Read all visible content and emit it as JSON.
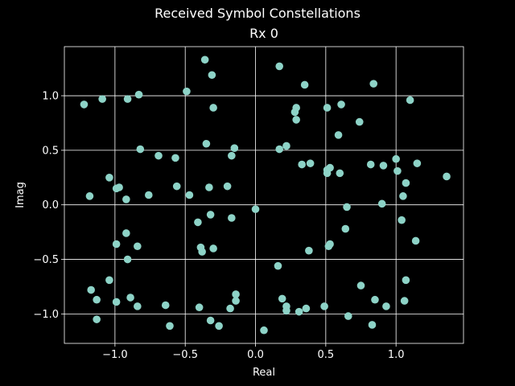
{
  "figure": {
    "suptitle": "Received Symbol Constellations"
  },
  "chart_data": {
    "type": "scatter",
    "title": "Rx 0",
    "xlabel": "Real",
    "ylabel": "Imag",
    "xlim": [
      -1.36,
      1.48
    ],
    "ylim": [
      -1.27,
      1.45
    ],
    "xticks": [
      -1.0,
      -0.5,
      0.0,
      0.5,
      1.0
    ],
    "xtick_labels": [
      "−1.0",
      "−0.5",
      "0.0",
      "0.5",
      "1.0"
    ],
    "yticks": [
      -1.0,
      -0.5,
      0.0,
      0.5,
      1.0
    ],
    "ytick_labels": [
      "−1.0",
      "−0.5",
      "0.0",
      "0.5",
      "1.0"
    ],
    "grid": true,
    "colors": {
      "background": "#000000",
      "marker": "#8dd3c7",
      "grid": "#ffffff",
      "text": "#ffffff"
    },
    "points": [
      {
        "x": -1.22,
        "y": 0.92
      },
      {
        "x": -1.09,
        "y": 0.97
      },
      {
        "x": -0.91,
        "y": 0.97
      },
      {
        "x": -0.83,
        "y": 1.01
      },
      {
        "x": -0.36,
        "y": 1.33
      },
      {
        "x": -0.31,
        "y": 1.19
      },
      {
        "x": -0.49,
        "y": 1.04
      },
      {
        "x": -0.3,
        "y": 0.89
      },
      {
        "x": 0.17,
        "y": 1.27
      },
      {
        "x": 0.35,
        "y": 1.1
      },
      {
        "x": 0.29,
        "y": 0.89
      },
      {
        "x": 0.28,
        "y": 0.85
      },
      {
        "x": 0.29,
        "y": 0.78
      },
      {
        "x": 0.51,
        "y": 0.89
      },
      {
        "x": 0.61,
        "y": 0.92
      },
      {
        "x": 0.84,
        "y": 1.11
      },
      {
        "x": 1.1,
        "y": 0.96
      },
      {
        "x": 0.74,
        "y": 0.76
      },
      {
        "x": 0.59,
        "y": 0.64
      },
      {
        "x": -0.82,
        "y": 0.51
      },
      {
        "x": -0.69,
        "y": 0.45
      },
      {
        "x": -0.57,
        "y": 0.43
      },
      {
        "x": -0.35,
        "y": 0.56
      },
      {
        "x": -0.15,
        "y": 0.52
      },
      {
        "x": -0.17,
        "y": 0.45
      },
      {
        "x": 0.17,
        "y": 0.51
      },
      {
        "x": 0.22,
        "y": 0.54
      },
      {
        "x": -1.04,
        "y": 0.25
      },
      {
        "x": -0.99,
        "y": 0.15
      },
      {
        "x": -0.97,
        "y": 0.16
      },
      {
        "x": -1.18,
        "y": 0.08
      },
      {
        "x": -0.76,
        "y": 0.09
      },
      {
        "x": -0.92,
        "y": 0.05
      },
      {
        "x": -0.56,
        "y": 0.17
      },
      {
        "x": -0.47,
        "y": 0.09
      },
      {
        "x": -0.33,
        "y": 0.16
      },
      {
        "x": -0.2,
        "y": 0.17
      },
      {
        "x": 0.33,
        "y": 0.37
      },
      {
        "x": 0.39,
        "y": 0.38
      },
      {
        "x": 0.51,
        "y": 0.29
      },
      {
        "x": 0.51,
        "y": 0.32
      },
      {
        "x": 0.53,
        "y": 0.34
      },
      {
        "x": 0.6,
        "y": 0.29
      },
      {
        "x": 0.82,
        "y": 0.37
      },
      {
        "x": 0.91,
        "y": 0.36
      },
      {
        "x": 1.0,
        "y": 0.42
      },
      {
        "x": 1.01,
        "y": 0.31
      },
      {
        "x": 1.15,
        "y": 0.38
      },
      {
        "x": 1.36,
        "y": 0.26
      },
      {
        "x": 1.07,
        "y": 0.2
      },
      {
        "x": 1.05,
        "y": 0.08
      },
      {
        "x": 0.9,
        "y": 0.01
      },
      {
        "x": 0.65,
        "y": -0.02
      },
      {
        "x": 0.0,
        "y": -0.04
      },
      {
        "x": -0.32,
        "y": -0.09
      },
      {
        "x": -0.41,
        "y": -0.16
      },
      {
        "x": -0.17,
        "y": -0.12
      },
      {
        "x": 1.04,
        "y": -0.14
      },
      {
        "x": 0.64,
        "y": -0.22
      },
      {
        "x": -0.92,
        "y": -0.26
      },
      {
        "x": -0.99,
        "y": -0.36
      },
      {
        "x": -0.84,
        "y": -0.38
      },
      {
        "x": -0.39,
        "y": -0.39
      },
      {
        "x": -0.38,
        "y": -0.43
      },
      {
        "x": -0.3,
        "y": -0.4
      },
      {
        "x": 0.38,
        "y": -0.42
      },
      {
        "x": 0.53,
        "y": -0.36
      },
      {
        "x": 0.52,
        "y": -0.38
      },
      {
        "x": 1.14,
        "y": -0.33
      },
      {
        "x": -0.91,
        "y": -0.5
      },
      {
        "x": 0.16,
        "y": -0.56
      },
      {
        "x": -1.04,
        "y": -0.69
      },
      {
        "x": 1.07,
        "y": -0.69
      },
      {
        "x": -1.17,
        "y": -0.78
      },
      {
        "x": 0.75,
        "y": -0.74
      },
      {
        "x": -1.13,
        "y": -0.87
      },
      {
        "x": -0.99,
        "y": -0.89
      },
      {
        "x": -0.89,
        "y": -0.85
      },
      {
        "x": -0.84,
        "y": -0.93
      },
      {
        "x": -0.64,
        "y": -0.92
      },
      {
        "x": -0.4,
        "y": -0.94
      },
      {
        "x": -0.14,
        "y": -0.82
      },
      {
        "x": -0.14,
        "y": -0.88
      },
      {
        "x": -0.18,
        "y": -0.95
      },
      {
        "x": 0.19,
        "y": -0.86
      },
      {
        "x": 0.22,
        "y": -0.93
      },
      {
        "x": 0.22,
        "y": -0.97
      },
      {
        "x": 0.31,
        "y": -0.98
      },
      {
        "x": 0.36,
        "y": -0.95
      },
      {
        "x": 0.49,
        "y": -0.93
      },
      {
        "x": 0.85,
        "y": -0.87
      },
      {
        "x": 0.93,
        "y": -0.93
      },
      {
        "x": 1.06,
        "y": -0.88
      },
      {
        "x": 0.66,
        "y": -1.02
      },
      {
        "x": -1.13,
        "y": -1.05
      },
      {
        "x": -0.32,
        "y": -1.06
      },
      {
        "x": -0.61,
        "y": -1.11
      },
      {
        "x": -0.26,
        "y": -1.11
      },
      {
        "x": 0.06,
        "y": -1.15
      },
      {
        "x": 0.83,
        "y": -1.1
      }
    ]
  }
}
